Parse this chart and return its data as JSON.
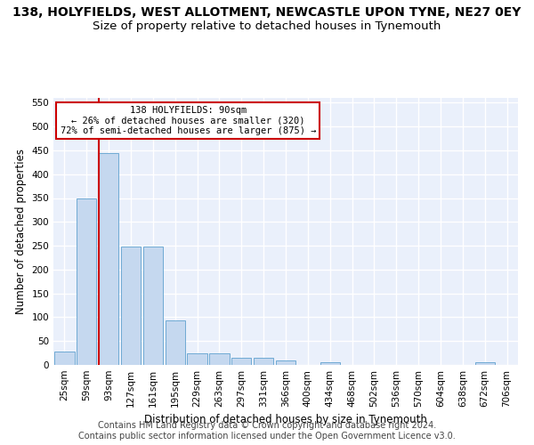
{
  "title": "138, HOLYFIELDS, WEST ALLOTMENT, NEWCASTLE UPON TYNE, NE27 0EY",
  "subtitle": "Size of property relative to detached houses in Tynemouth",
  "xlabel": "Distribution of detached houses by size in Tynemouth",
  "ylabel": "Number of detached properties",
  "bar_labels": [
    "25sqm",
    "59sqm",
    "93sqm",
    "127sqm",
    "161sqm",
    "195sqm",
    "229sqm",
    "263sqm",
    "297sqm",
    "331sqm",
    "366sqm",
    "400sqm",
    "434sqm",
    "468sqm",
    "502sqm",
    "536sqm",
    "570sqm",
    "604sqm",
    "638sqm",
    "672sqm",
    "706sqm"
  ],
  "bar_values": [
    28,
    350,
    445,
    248,
    248,
    93,
    25,
    25,
    15,
    15,
    10,
    0,
    5,
    0,
    0,
    0,
    0,
    0,
    0,
    5,
    0
  ],
  "bar_color": "#c5d8ef",
  "bar_edge_color": "#6faad4",
  "vline_x_index": 2,
  "annotation_text": "138 HOLYFIELDS: 90sqm\n← 26% of detached houses are smaller (320)\n72% of semi-detached houses are larger (875) →",
  "annotation_box_color": "#ffffff",
  "annotation_box_edge": "#cc0000",
  "vline_color": "#cc0000",
  "ylim": [
    0,
    560
  ],
  "yticks": [
    0,
    50,
    100,
    150,
    200,
    250,
    300,
    350,
    400,
    450,
    500,
    550
  ],
  "bg_color": "#eaf0fb",
  "grid_color": "#ffffff",
  "footer_line1": "Contains HM Land Registry data © Crown copyright and database right 2024.",
  "footer_line2": "Contains public sector information licensed under the Open Government Licence v3.0.",
  "title_fontsize": 10,
  "subtitle_fontsize": 9.5,
  "xlabel_fontsize": 8.5,
  "ylabel_fontsize": 8.5,
  "tick_fontsize": 7.5,
  "footer_fontsize": 7
}
